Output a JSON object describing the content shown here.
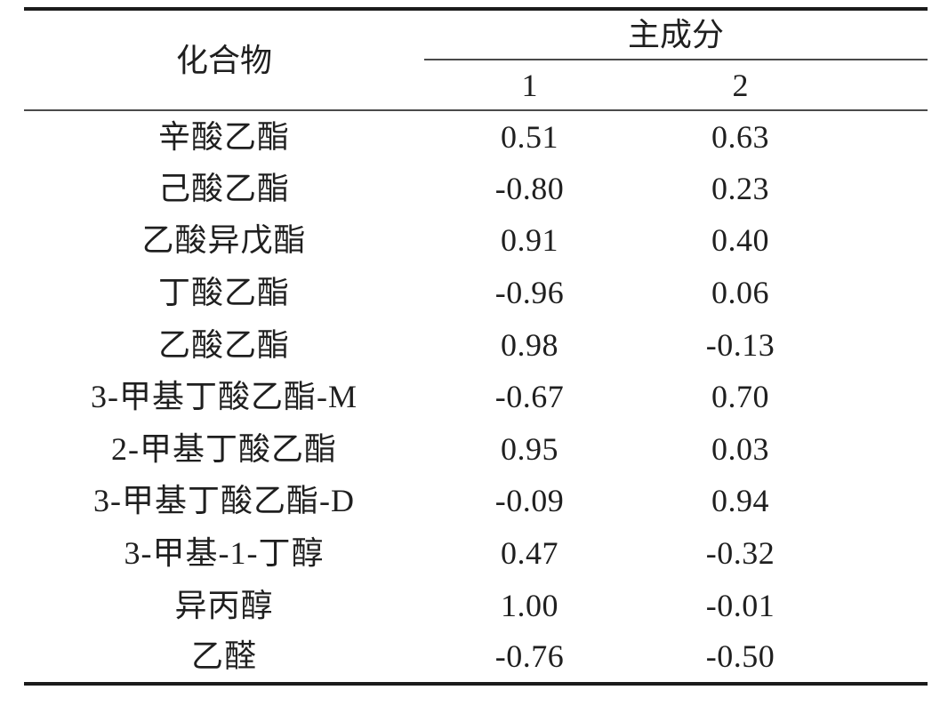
{
  "table": {
    "compound_header": "化合物",
    "group_header": "主成分",
    "sub_headers": [
      "1",
      "2"
    ],
    "rows": [
      {
        "compound": "辛酸乙酯",
        "pc1": "0.51",
        "pc2": "0.63"
      },
      {
        "compound": "己酸乙酯",
        "pc1": "-0.80",
        "pc2": "0.23"
      },
      {
        "compound": "乙酸异戊酯",
        "pc1": "0.91",
        "pc2": "0.40"
      },
      {
        "compound": "丁酸乙酯",
        "pc1": "-0.96",
        "pc2": "0.06"
      },
      {
        "compound": "乙酸乙酯",
        "pc1": "0.98",
        "pc2": "-0.13"
      },
      {
        "compound": "3-甲基丁酸乙酯-M",
        "pc1": "-0.67",
        "pc2": "0.70"
      },
      {
        "compound": "2-甲基丁酸乙酯",
        "pc1": "0.95",
        "pc2": "0.03"
      },
      {
        "compound": "3-甲基丁酸乙酯-D",
        "pc1": "-0.09",
        "pc2": "0.94"
      },
      {
        "compound": "3-甲基-1-丁醇",
        "pc1": "0.47",
        "pc2": "-0.32"
      },
      {
        "compound": "异丙醇",
        "pc1": "1.00",
        "pc2": "-0.01"
      },
      {
        "compound": "乙醛",
        "pc1": "-0.76",
        "pc2": "-0.50"
      }
    ],
    "colors": {
      "background": "#ffffff",
      "text": "#1f1f1f",
      "rule_heavy": "#1b1b1b",
      "rule_light": "#4a4a4a"
    }
  }
}
